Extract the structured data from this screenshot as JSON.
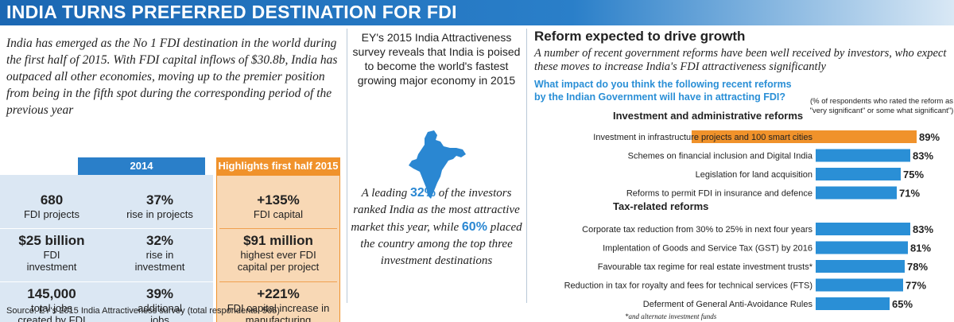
{
  "header": {
    "title": "INDIA TURNS PREFERRED DESTINATION FOR FDI"
  },
  "left": {
    "intro": "India has emerged as the No 1 FDI destination in the world during the first half of 2015. With FDI capital inflows of $30.8b, India has outpaced all other economies, moving up to the premier position from being in the fifth spot during the corresponding period of the previous year",
    "col_2014_label": "2014",
    "col_highlights_label": "Highlights first half 2015",
    "rows": [
      {
        "a_value": "680",
        "a_label": "FDI projects",
        "b_value": "37%",
        "b_label": "rise in projects",
        "h_value": "+135%",
        "h_label": "FDI capital"
      },
      {
        "a_value": "$25 billion",
        "a_label": "FDI investment",
        "b_value": "32%",
        "b_label": "rise in investment",
        "h_value": "$91 million",
        "h_label": "highest ever FDI capital per project"
      },
      {
        "a_value": "145,000",
        "a_label": "total jobs created by FDI",
        "b_value": "39%",
        "b_label": "additional jobs",
        "h_value": "+221%",
        "h_label": "FDI capital increase in manufacturing"
      }
    ]
  },
  "middle": {
    "title": "EY's 2015 India Attractiveness survey reveals that India is poised to become the world's fastest growing major economy in 2015",
    "body_1": "A leading ",
    "pct_1": "32%",
    "body_2": " of the investors ranked India as the most attractive market this year, while ",
    "pct_2": "60%",
    "body_3": " placed the country among the top three investment destinations",
    "map_color": "#2a87d2"
  },
  "right": {
    "title": "Reform expected to drive growth",
    "intro": "A number of recent government reforms have been well received by investors, who expect these moves to increase India's FDI attractiveness significantly",
    "question": "What impact do you think the following recent reforms by the Indian Government will have in attracting FDI?",
    "note": "(% of respondents who rated the reform as \"very significant\" or some what significant\")",
    "footnote": "*and alternate investment funds"
  },
  "chart_data": {
    "type": "bar",
    "orientation": "horizontal",
    "xlim": [
      0,
      100
    ],
    "groups": [
      {
        "name": "Investment and administrative reforms",
        "categories": [
          "Investment in infrastructure projects and 100 smart cities",
          "Schemes on financial inclusion and Digital India",
          "Legislation for land acquisition",
          "Reforms to permit FDI in insurance and defence"
        ],
        "values": [
          89,
          83,
          75,
          71
        ],
        "labels": [
          "89%",
          "83%",
          "75%",
          "71%"
        ]
      },
      {
        "name": "Tax-related reforms",
        "categories": [
          "Corporate tax reduction from 30% to 25% in next four years",
          "Implentation of Goods and Service Tax (GST) by 2016",
          "Favourable tax regime for real estate investment trusts*",
          "Reduction in tax for royalty and fees for technical services (FTS)",
          "Deferment of General Anti-Avoidance Rules"
        ],
        "values": [
          83,
          81,
          78,
          77,
          65
        ],
        "labels": [
          "83%",
          "81%",
          "78%",
          "77%",
          "65%"
        ]
      }
    ],
    "highlight_color": "#f0922b",
    "bar_color": "#2a8fd6"
  },
  "source": "Source: EY's 2015 India Attractiveness survey (total respondents: 505)"
}
